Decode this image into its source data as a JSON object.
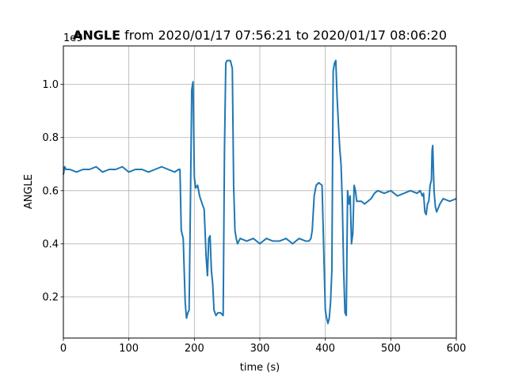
{
  "chart_data": {
    "type": "line",
    "title_bold": "ANGLE",
    "title_rest": " from 2020/01/17 07:56:21 to 2020/01/17 08:06:20",
    "xlabel": "time (s)",
    "ylabel": "ANGLE",
    "offset_label": "1e9",
    "xlim": [
      0,
      600
    ],
    "ylim": [
      0.045,
      1.145
    ],
    "xticks": [
      0,
      100,
      200,
      300,
      400,
      500,
      600
    ],
    "xtick_labels": [
      "0",
      "100",
      "200",
      "300",
      "400",
      "500",
      "600"
    ],
    "yticks": [
      0.2,
      0.4,
      0.6,
      0.8,
      1.0
    ],
    "ytick_labels": [
      "0.2",
      "0.4",
      "0.6",
      "0.8",
      "1.0"
    ],
    "grid": true,
    "line_color": "#1f77b4",
    "series": [
      {
        "x": [
          0,
          2,
          4,
          10,
          20,
          30,
          40,
          50,
          60,
          70,
          80,
          90,
          100,
          110,
          120,
          130,
          140,
          150,
          160,
          170,
          176,
          178,
          180,
          183,
          186,
          188,
          190,
          192,
          194,
          196,
          198,
          200,
          202,
          205,
          208,
          212,
          215,
          218,
          220,
          222,
          224,
          226,
          228,
          230,
          233,
          236,
          240,
          244,
          246,
          248,
          250,
          255,
          258,
          260,
          262,
          264,
          266,
          270,
          280,
          290,
          300,
          310,
          320,
          330,
          340,
          350,
          360,
          370,
          375,
          378,
          380,
          383,
          386,
          390,
          395,
          400,
          402,
          404,
          406,
          408,
          410,
          412,
          414,
          416,
          418,
          420,
          422,
          424,
          426,
          428,
          430,
          432,
          434,
          436,
          438,
          440,
          442,
          444,
          446,
          448,
          450,
          455,
          460,
          465,
          470,
          475,
          480,
          490,
          500,
          510,
          520,
          530,
          540,
          545,
          548,
          550,
          552,
          554,
          556,
          558,
          560,
          562,
          563,
          564,
          566,
          568,
          570,
          575,
          580,
          590,
          600
        ],
        "y": [
          0.66,
          0.69,
          0.68,
          0.68,
          0.67,
          0.68,
          0.68,
          0.69,
          0.67,
          0.68,
          0.68,
          0.69,
          0.67,
          0.68,
          0.68,
          0.67,
          0.68,
          0.69,
          0.68,
          0.67,
          0.68,
          0.68,
          0.45,
          0.42,
          0.18,
          0.12,
          0.14,
          0.15,
          0.55,
          0.98,
          1.01,
          0.65,
          0.61,
          0.62,
          0.58,
          0.55,
          0.53,
          0.35,
          0.28,
          0.42,
          0.43,
          0.3,
          0.25,
          0.15,
          0.13,
          0.14,
          0.14,
          0.13,
          0.75,
          1.08,
          1.09,
          1.09,
          1.06,
          0.62,
          0.45,
          0.42,
          0.4,
          0.42,
          0.41,
          0.42,
          0.4,
          0.42,
          0.41,
          0.41,
          0.42,
          0.4,
          0.42,
          0.41,
          0.41,
          0.42,
          0.45,
          0.58,
          0.62,
          0.63,
          0.62,
          0.15,
          0.12,
          0.1,
          0.12,
          0.18,
          0.3,
          1.05,
          1.08,
          1.09,
          0.95,
          0.85,
          0.76,
          0.7,
          0.55,
          0.3,
          0.14,
          0.13,
          0.6,
          0.55,
          0.58,
          0.4,
          0.44,
          0.62,
          0.6,
          0.56,
          0.56,
          0.56,
          0.55,
          0.56,
          0.57,
          0.59,
          0.6,
          0.59,
          0.6,
          0.58,
          0.59,
          0.6,
          0.59,
          0.6,
          0.58,
          0.59,
          0.52,
          0.51,
          0.55,
          0.56,
          0.62,
          0.64,
          0.75,
          0.77,
          0.6,
          0.54,
          0.52,
          0.55,
          0.57,
          0.56,
          0.57
        ]
      }
    ]
  }
}
